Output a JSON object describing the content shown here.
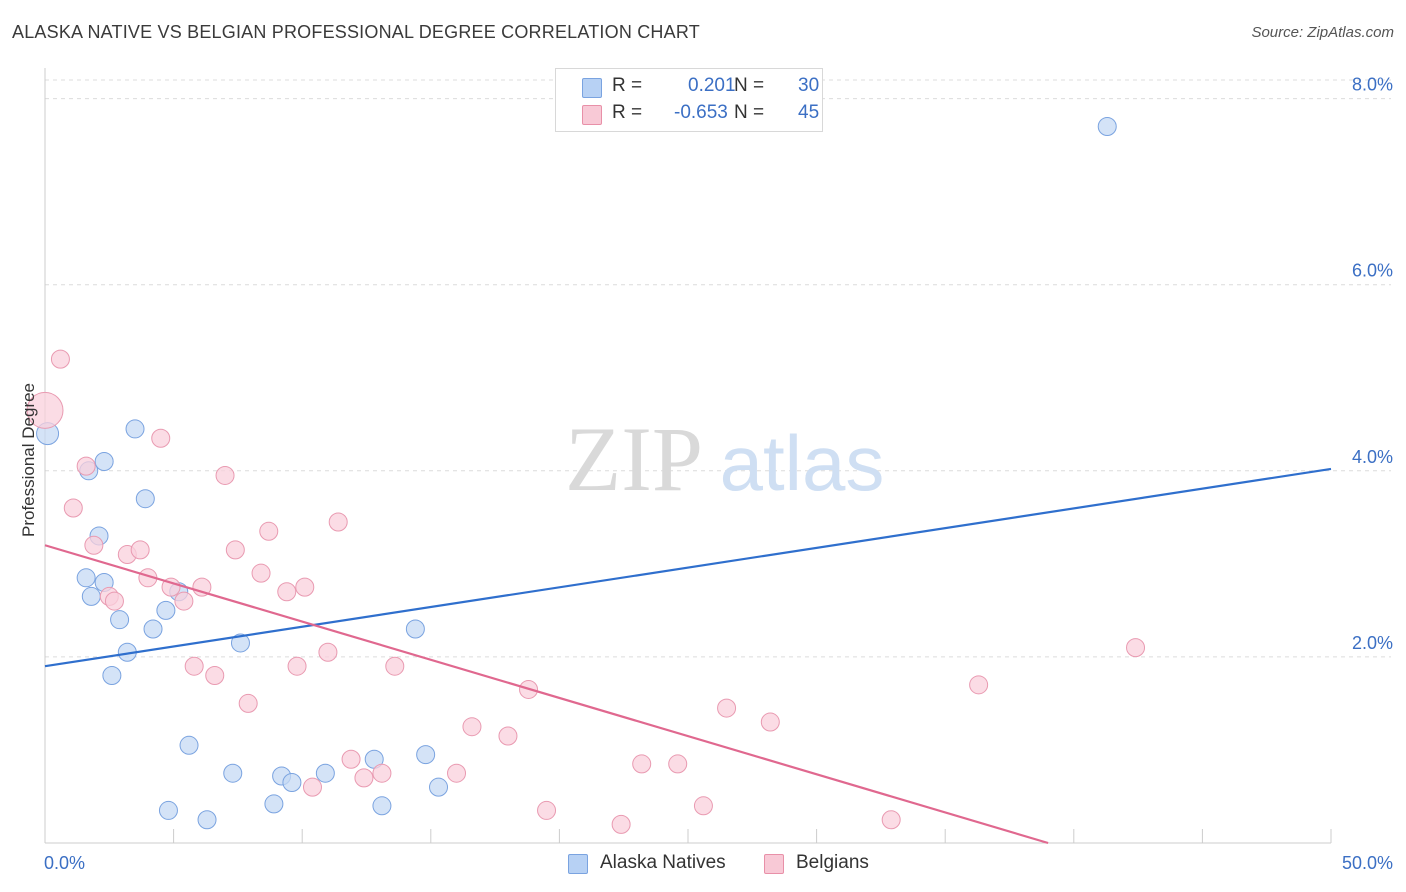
{
  "title": "ALASKA NATIVE VS BELGIAN PROFESSIONAL DEGREE CORRELATION CHART",
  "source": "Source: ZipAtlas.com",
  "watermark": {
    "zip": "ZIP",
    "atlas": "atlas"
  },
  "legend": {
    "rows": [
      {
        "r_label": "R =",
        "r_value": "0.201",
        "n_label": "N =",
        "n_value": "30",
        "color": "#b7d1f4",
        "border": "#7aa3e0"
      },
      {
        "r_label": "R =",
        "r_value": "-0.653",
        "n_label": "N =",
        "n_value": "45",
        "color": "#f8c9d6",
        "border": "#e890a8"
      }
    ]
  },
  "colors": {
    "blue_fill": "#c5d9f4",
    "blue_stroke": "#7aa3e0",
    "blue_line": "#2f6fcd",
    "pink_fill": "#f9d0dc",
    "pink_stroke": "#e99ab1",
    "pink_line": "#e0688f",
    "tick_label": "#3b6fc4",
    "grid": "#dcdcdc"
  },
  "chart_data": {
    "type": "scatter",
    "title": "ALASKA NATIVE VS BELGIAN PROFESSIONAL DEGREE CORRELATION CHART",
    "xlabel": "",
    "ylabel": "Professional Degree",
    "xlim": [
      0,
      50
    ],
    "ylim": [
      0,
      8.2
    ],
    "x_tick_labels": [
      "0.0%",
      "50.0%"
    ],
    "y_ticks": [
      2,
      4,
      6,
      8
    ],
    "y_tick_labels": [
      "2.0%",
      "4.0%",
      "6.0%",
      "8.0%"
    ],
    "grid": true,
    "legend_position": "top-center",
    "series": [
      {
        "name": "Alaska Natives",
        "color": "#c5d9f4",
        "trend": {
          "x": [
            0,
            50
          ],
          "y": [
            1.9,
            4.02
          ]
        },
        "points": [
          {
            "x": 0.1,
            "y": 4.4,
            "s": 11
          },
          {
            "x": 1.6,
            "y": 2.85,
            "s": 9
          },
          {
            "x": 2.1,
            "y": 3.3,
            "s": 9
          },
          {
            "x": 2.3,
            "y": 2.8,
            "s": 9
          },
          {
            "x": 1.7,
            "y": 4.0,
            "s": 9
          },
          {
            "x": 2.3,
            "y": 4.1,
            "s": 9
          },
          {
            "x": 1.8,
            "y": 2.65,
            "s": 9
          },
          {
            "x": 2.9,
            "y": 2.4,
            "s": 9
          },
          {
            "x": 3.2,
            "y": 2.05,
            "s": 9
          },
          {
            "x": 2.6,
            "y": 1.8,
            "s": 9
          },
          {
            "x": 3.5,
            "y": 4.45,
            "s": 9
          },
          {
            "x": 3.9,
            "y": 3.7,
            "s": 9
          },
          {
            "x": 4.2,
            "y": 2.3,
            "s": 9
          },
          {
            "x": 4.7,
            "y": 2.5,
            "s": 9
          },
          {
            "x": 5.2,
            "y": 2.7,
            "s": 9
          },
          {
            "x": 5.6,
            "y": 1.05,
            "s": 9
          },
          {
            "x": 4.8,
            "y": 0.35,
            "s": 9
          },
          {
            "x": 6.3,
            "y": 0.25,
            "s": 9
          },
          {
            "x": 7.3,
            "y": 0.75,
            "s": 9
          },
          {
            "x": 7.6,
            "y": 2.15,
            "s": 9
          },
          {
            "x": 8.9,
            "y": 0.42,
            "s": 9
          },
          {
            "x": 9.2,
            "y": 0.72,
            "s": 9
          },
          {
            "x": 9.6,
            "y": 0.65,
            "s": 9
          },
          {
            "x": 10.9,
            "y": 0.75,
            "s": 9
          },
          {
            "x": 12.8,
            "y": 0.9,
            "s": 9
          },
          {
            "x": 13.1,
            "y": 0.4,
            "s": 9
          },
          {
            "x": 14.4,
            "y": 2.3,
            "s": 9
          },
          {
            "x": 14.8,
            "y": 0.95,
            "s": 9
          },
          {
            "x": 15.3,
            "y": 0.6,
            "s": 9
          },
          {
            "x": 41.3,
            "y": 7.7,
            "s": 9
          }
        ]
      },
      {
        "name": "Belgians",
        "color": "#f9d0dc",
        "trend": {
          "x": [
            0,
            39
          ],
          "y": [
            3.2,
            0.0
          ]
        },
        "points": [
          {
            "x": 0.0,
            "y": 4.65,
            "s": 18
          },
          {
            "x": 0.6,
            "y": 5.2,
            "s": 9
          },
          {
            "x": 1.1,
            "y": 3.6,
            "s": 9
          },
          {
            "x": 1.6,
            "y": 4.05,
            "s": 9
          },
          {
            "x": 1.9,
            "y": 3.2,
            "s": 9
          },
          {
            "x": 2.5,
            "y": 2.65,
            "s": 9
          },
          {
            "x": 2.7,
            "y": 2.6,
            "s": 9
          },
          {
            "x": 3.2,
            "y": 3.1,
            "s": 9
          },
          {
            "x": 3.7,
            "y": 3.15,
            "s": 9
          },
          {
            "x": 4.0,
            "y": 2.85,
            "s": 9
          },
          {
            "x": 4.5,
            "y": 4.35,
            "s": 9
          },
          {
            "x": 4.9,
            "y": 2.75,
            "s": 9
          },
          {
            "x": 5.4,
            "y": 2.6,
            "s": 9
          },
          {
            "x": 5.8,
            "y": 1.9,
            "s": 9
          },
          {
            "x": 6.1,
            "y": 2.75,
            "s": 9
          },
          {
            "x": 6.6,
            "y": 1.8,
            "s": 9
          },
          {
            "x": 7.0,
            "y": 3.95,
            "s": 9
          },
          {
            "x": 7.4,
            "y": 3.15,
            "s": 9
          },
          {
            "x": 7.9,
            "y": 1.5,
            "s": 9
          },
          {
            "x": 8.4,
            "y": 2.9,
            "s": 9
          },
          {
            "x": 8.7,
            "y": 3.35,
            "s": 9
          },
          {
            "x": 9.4,
            "y": 2.7,
            "s": 9
          },
          {
            "x": 9.8,
            "y": 1.9,
            "s": 9
          },
          {
            "x": 10.1,
            "y": 2.75,
            "s": 9
          },
          {
            "x": 10.4,
            "y": 0.6,
            "s": 9
          },
          {
            "x": 11.0,
            "y": 2.05,
            "s": 9
          },
          {
            "x": 11.4,
            "y": 3.45,
            "s": 9
          },
          {
            "x": 11.9,
            "y": 0.9,
            "s": 9
          },
          {
            "x": 12.4,
            "y": 0.7,
            "s": 9
          },
          {
            "x": 13.1,
            "y": 0.75,
            "s": 9
          },
          {
            "x": 13.6,
            "y": 1.9,
            "s": 9
          },
          {
            "x": 16.0,
            "y": 0.75,
            "s": 9
          },
          {
            "x": 16.6,
            "y": 1.25,
            "s": 9
          },
          {
            "x": 18.0,
            "y": 1.15,
            "s": 9
          },
          {
            "x": 18.8,
            "y": 1.65,
            "s": 9
          },
          {
            "x": 19.5,
            "y": 0.35,
            "s": 9
          },
          {
            "x": 22.4,
            "y": 0.2,
            "s": 9
          },
          {
            "x": 23.2,
            "y": 0.85,
            "s": 9
          },
          {
            "x": 24.6,
            "y": 0.85,
            "s": 9
          },
          {
            "x": 25.6,
            "y": 0.4,
            "s": 9
          },
          {
            "x": 26.5,
            "y": 1.45,
            "s": 9
          },
          {
            "x": 28.2,
            "y": 1.3,
            "s": 9
          },
          {
            "x": 32.9,
            "y": 0.25,
            "s": 9
          },
          {
            "x": 36.3,
            "y": 1.7,
            "s": 9
          },
          {
            "x": 42.4,
            "y": 2.1,
            "s": 9
          }
        ]
      }
    ]
  }
}
